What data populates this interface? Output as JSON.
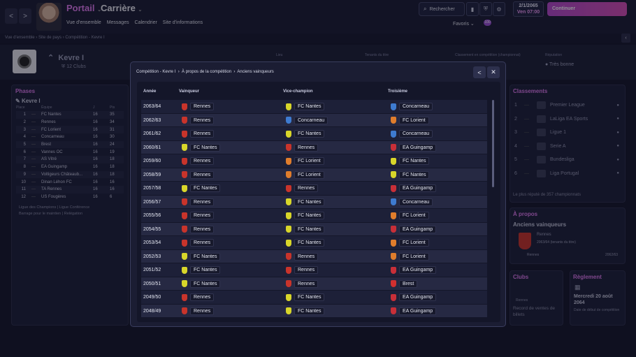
{
  "nav": {
    "back": "<",
    "forward": ">",
    "portail": "Portail",
    "carriere": "Carrière",
    "menu": [
      "Vue d'ensemble",
      "Messages",
      "Calendrier",
      "Site d'informations"
    ]
  },
  "top": {
    "search": "Rechercher",
    "favoris": "Favoris",
    "fav_count": "100",
    "date1": "2/1/2065",
    "date2": "Ven 07:00",
    "continue": "Continuer"
  },
  "breadcrumb": [
    "Vue d'ensemble",
    "Site de pays",
    "Compétition - Kevre I"
  ],
  "competition": {
    "name": "Kevre I",
    "clubs": "12 Clubs",
    "cols": [
      "Lieu",
      "Tenants du titre",
      "Classement en compétition (championnat)",
      "Réputation"
    ],
    "reputation": "Très bonne"
  },
  "phases": {
    "title": "Phases",
    "league": "Kevre I",
    "cols": [
      "Place",
      "Équipe",
      "J",
      "Pts"
    ],
    "rows": [
      [
        "1",
        "FC Nantes",
        "16",
        "35"
      ],
      [
        "2",
        "Rennes",
        "16",
        "34"
      ],
      [
        "3",
        "FC Lorient",
        "16",
        "31"
      ],
      [
        "4",
        "Concarneau",
        "16",
        "30"
      ],
      [
        "5",
        "Brest",
        "16",
        "24"
      ],
      [
        "6",
        "Vannes OC",
        "16",
        "19"
      ],
      [
        "7",
        "AS Vitré",
        "16",
        "18"
      ],
      [
        "8",
        "EA Guingamp",
        "16",
        "18"
      ],
      [
        "9",
        "Voltigeurs Châteaub...",
        "16",
        "18"
      ],
      [
        "10",
        "Dinan Léhon FC",
        "16",
        "16"
      ],
      [
        "11",
        "TA Rennes",
        "16",
        "16"
      ],
      [
        "12",
        "US Fougères",
        "16",
        "6"
      ]
    ],
    "legend": [
      "Ligue des Champions",
      "Ligue Conférence",
      "Barrage pour le maintien",
      "Relégation"
    ]
  },
  "classements": {
    "title": "Classements",
    "items": [
      "Premier League",
      "LaLiga EA Sports",
      "Ligue 1",
      "Serie A",
      "Bundesliga",
      "Liga Portugal"
    ],
    "footer": "Le plus réputé de 357 championnats"
  },
  "apropos": {
    "title": "À propos",
    "sub": "Anciens vainqueurs",
    "team": "Rennes",
    "detail": "2063/64 (tenants du titre)",
    "team2": "Rennes",
    "season2": "2062/63"
  },
  "clubs": {
    "title": "Clubs",
    "team": "Rennes",
    "text": "Record de ventes de billets"
  },
  "reglement": {
    "title": "Règlement",
    "date": "Mercredi 20 août 2064",
    "text": "Date de début de compétition"
  },
  "modal": {
    "crumbs": [
      "Compétition - Kevre I",
      "À propos de la compétition",
      "Anciens vainqueurs"
    ],
    "back": "<",
    "close": "✕",
    "headers": [
      "Année",
      "Vainqueur",
      "Vice-champion",
      "Troisième"
    ],
    "rows": [
      [
        "2063/64",
        "Rennes",
        "FC Nantes",
        "Concarneau"
      ],
      [
        "2062/63",
        "Rennes",
        "Concarneau",
        "FC Lorient"
      ],
      [
        "2061/62",
        "Rennes",
        "FC Nantes",
        "Concarneau"
      ],
      [
        "2060/61",
        "FC Nantes",
        "Rennes",
        "EA Guingamp"
      ],
      [
        "2059/60",
        "Rennes",
        "FC Lorient",
        "FC Nantes"
      ],
      [
        "2058/59",
        "Rennes",
        "FC Lorient",
        "FC Nantes"
      ],
      [
        "2057/58",
        "FC Nantes",
        "Rennes",
        "EA Guingamp"
      ],
      [
        "2056/57",
        "Rennes",
        "FC Nantes",
        "Concarneau"
      ],
      [
        "2055/56",
        "Rennes",
        "FC Nantes",
        "FC Lorient"
      ],
      [
        "2054/55",
        "Rennes",
        "FC Nantes",
        "EA Guingamp"
      ],
      [
        "2053/54",
        "Rennes",
        "FC Nantes",
        "FC Lorient"
      ],
      [
        "2052/53",
        "FC Nantes",
        "Rennes",
        "FC Lorient"
      ],
      [
        "2051/52",
        "FC Nantes",
        "Rennes",
        "EA Guingamp"
      ],
      [
        "2050/51",
        "FC Nantes",
        "Rennes",
        "Brest"
      ],
      [
        "2049/50",
        "Rennes",
        "FC Nantes",
        "EA Guingamp"
      ],
      [
        "2048/49",
        "Rennes",
        "FC Nantes",
        "EA Guingamp"
      ]
    ]
  },
  "colors": {
    "Rennes": "#c8342b",
    "FC Nantes": "#d8d62a",
    "Concarneau": "#3e7bd0",
    "FC Lorient": "#e07d2c",
    "EA Guingamp": "#c82f38",
    "Brest": "#d23030"
  }
}
